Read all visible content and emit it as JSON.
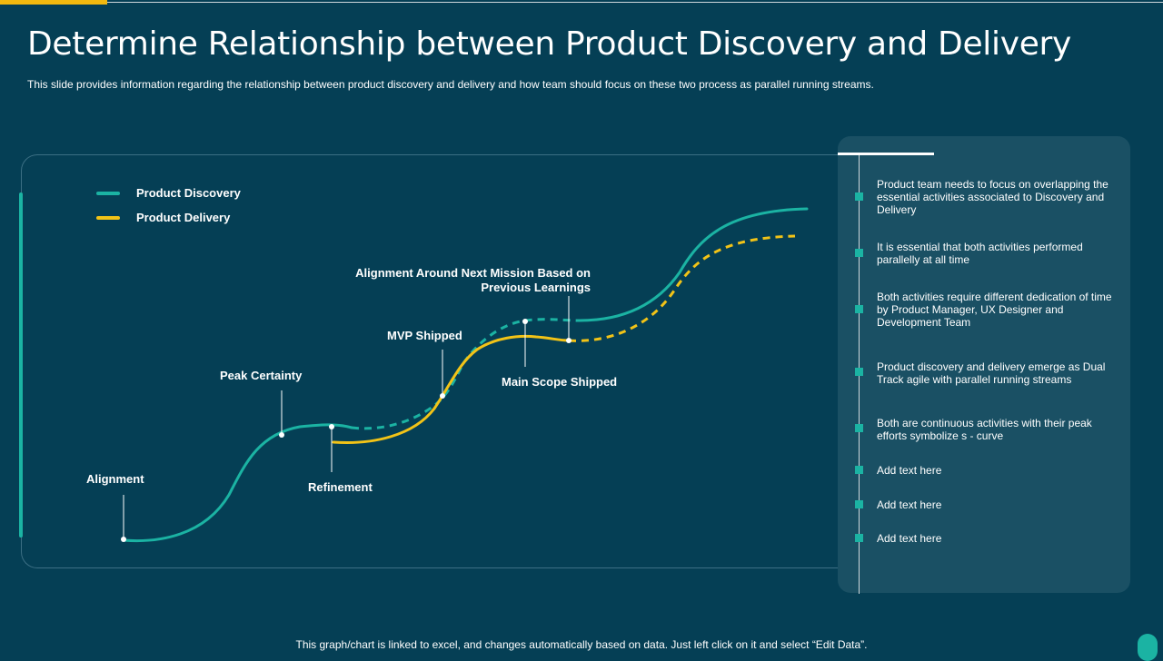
{
  "title": "Determine Relationship between Product Discovery and Delivery",
  "subtitle": "This slide provides information regarding the relationship between product discovery and delivery and how team should focus on these two process as parallel running streams.",
  "colors": {
    "background": "#053f55",
    "discovery": "#1bb3a3",
    "delivery": "#f2c317",
    "panel": "#1a5064",
    "accent_top": "#f2b90f"
  },
  "legend": [
    {
      "label": "Product Discovery",
      "color": "#1bb3a3"
    },
    {
      "label": "Product Delivery",
      "color": "#f2c317"
    }
  ],
  "stages": {
    "alignment": "Alignment",
    "peak_certainty": "Peak Certainty",
    "refinement": "Refinement",
    "mvp_shipped": "MVP Shipped",
    "alignment_next_mission_line1": "Alignment Around Next Mission  Based on",
    "alignment_next_mission_line2": "Previous Learnings",
    "main_scope_shipped": "Main Scope Shipped"
  },
  "panel_points": [
    "Product team needs to focus on overlapping the essential activities associated to Discovery and Delivery",
    "It is essential that both activities performed parallelly at all time",
    "Both activities require different dedication of time by Product Manager, UX Designer and Development Team",
    "Product discovery and delivery emerge as Dual Track agile with parallel running streams",
    "Both are continuous activities with their peak efforts symbolize s - curve",
    "Add text here",
    "Add text here",
    "Add text here"
  ],
  "footer_note": "This graph/chart is linked to excel, and changes automatically based on data. Just left click on it and select “Edit Data”."
}
